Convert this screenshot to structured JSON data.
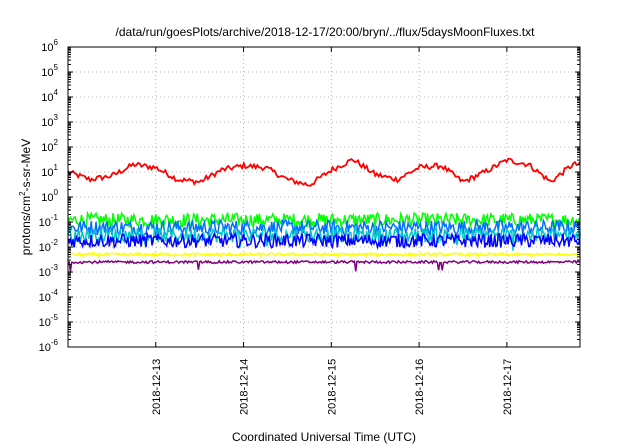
{
  "chart_data": {
    "type": "line",
    "title": "/data/run/goesPlots/archive/2018-12-17/20:00/bryn/../flux/5daysMoonFluxes.txt",
    "xlabel": "Coordinated Universal Time (UTC)",
    "ylabel": "protons/cm2-s-sr-MeV",
    "y_scale": "log",
    "ylim_exponents": [
      -6,
      6
    ],
    "y_tick_exponents": [
      -6,
      -5,
      -4,
      -3,
      -2,
      -1,
      0,
      1,
      2,
      3,
      4,
      5,
      6
    ],
    "y_tick_base": "10",
    "x_ticks": [
      "2018-12-13",
      "2018-12-14",
      "2018-12-15",
      "2018-12-16",
      "2018-12-17"
    ],
    "x_range_days": [
      "2018-12-12",
      "2018-12-17 20:00"
    ],
    "grid": true,
    "legend": "none",
    "series": [
      {
        "color": "#ff0000",
        "x": [
          "12-12 00h",
          "12-12 06h",
          "12-12 12h",
          "12-12 18h",
          "12-13 00h",
          "12-13 06h",
          "12-13 12h",
          "12-13 18h",
          "12-14 00h",
          "12-14 06h",
          "12-14 12h",
          "12-14 18h",
          "12-15 00h",
          "12-15 06h",
          "12-15 12h",
          "12-15 18h",
          "12-16 00h",
          "12-16 06h",
          "12-16 12h",
          "12-16 18h",
          "12-17 00h",
          "12-17 06h",
          "12-17 12h",
          "12-17 18h"
        ],
        "values": [
          10,
          5,
          7,
          20,
          15,
          5,
          4,
          12,
          18,
          15,
          5,
          3,
          12,
          32,
          8,
          5,
          15,
          18,
          4,
          10,
          30,
          20,
          4,
          20
        ]
      },
      {
        "color": "#00ff00",
        "level": 0.12
      },
      {
        "color": "#0070ff",
        "level": 0.06
      },
      {
        "color": "#00c8c8",
        "level": 0.03
      },
      {
        "color": "#0000ff",
        "level": 0.018
      },
      {
        "color": "#ffff00",
        "level": 0.005
      },
      {
        "color": "#800080",
        "level": 0.0025
      }
    ]
  }
}
